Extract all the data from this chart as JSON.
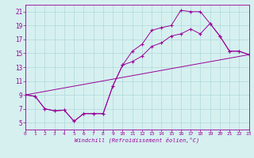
{
  "xlabel": "Windchill (Refroidissement éolien,°C)",
  "bg_color": "#d6f0f0",
  "line_color": "#990099",
  "grid_color": "#b0d8d8",
  "xlim": [
    0,
    23
  ],
  "ylim": [
    4,
    22
  ],
  "xticks": [
    0,
    1,
    2,
    3,
    4,
    5,
    6,
    7,
    8,
    9,
    10,
    11,
    12,
    13,
    14,
    15,
    16,
    17,
    18,
    19,
    20,
    21,
    22,
    23
  ],
  "yticks": [
    5,
    7,
    9,
    11,
    13,
    15,
    17,
    19,
    21
  ],
  "series": [
    {
      "x": [
        0,
        1,
        2,
        3,
        4,
        5,
        6,
        7,
        8,
        9,
        10,
        11,
        12,
        13,
        14,
        15,
        16,
        17,
        18,
        19,
        20,
        21,
        22,
        23
      ],
      "y": [
        9,
        8.8,
        7,
        6.7,
        6.8,
        5.2,
        6.3,
        6.3,
        6.3,
        10.3,
        13.3,
        15.3,
        16.3,
        18.3,
        18.7,
        19.0,
        21.2,
        21.0,
        21.0,
        19.3,
        17.5,
        15.3,
        15.3,
        14.8
      ]
    },
    {
      "x": [
        0,
        1,
        2,
        3,
        4,
        5,
        6,
        7,
        8,
        9,
        10,
        11,
        12,
        13,
        14,
        15,
        16,
        17,
        18,
        19,
        20,
        21,
        22,
        23
      ],
      "y": [
        9,
        8.8,
        7,
        6.7,
        6.8,
        5.2,
        6.3,
        6.3,
        6.3,
        10.3,
        13.3,
        13.8,
        14.6,
        16.0,
        16.5,
        17.5,
        17.8,
        18.5,
        17.8,
        19.3,
        17.5,
        15.3,
        15.3,
        14.8
      ]
    },
    {
      "x": [
        0,
        23
      ],
      "y": [
        9,
        14.8
      ]
    }
  ]
}
